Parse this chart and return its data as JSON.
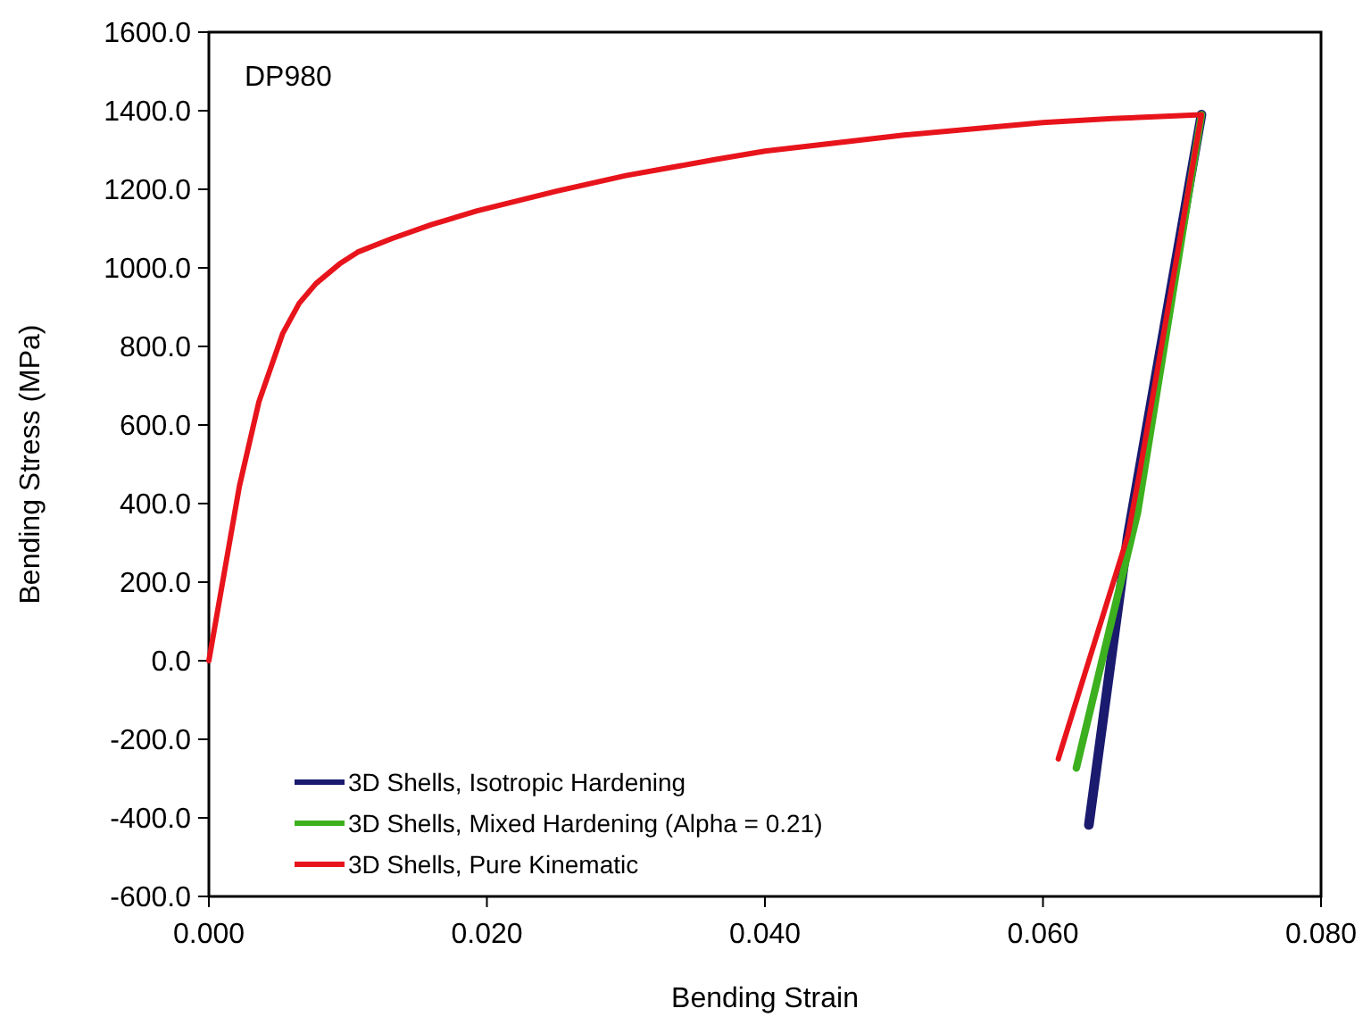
{
  "chart_data": {
    "type": "line",
    "title": "DP980",
    "xlabel": "Bending Strain",
    "ylabel": "Bending Stress (MPa)",
    "xlim": [
      0,
      0.08
    ],
    "ylim": [
      -600,
      1600
    ],
    "xticks": [
      {
        "value": 0,
        "label": "0.000"
      },
      {
        "value": 0.02,
        "label": "0.020"
      },
      {
        "value": 0.04,
        "label": "0.040"
      },
      {
        "value": 0.06,
        "label": "0.060"
      },
      {
        "value": 0.08,
        "label": "0.080"
      }
    ],
    "yticks": [
      {
        "value": -600,
        "label": "-600.0"
      },
      {
        "value": -400,
        "label": "-400.0"
      },
      {
        "value": -200,
        "label": "-200.0"
      },
      {
        "value": 0,
        "label": "0.0"
      },
      {
        "value": 200,
        "label": "200.0"
      },
      {
        "value": 400,
        "label": "400.0"
      },
      {
        "value": 600,
        "label": "600.0"
      },
      {
        "value": 800,
        "label": "800.0"
      },
      {
        "value": 1000,
        "label": "1000.0"
      },
      {
        "value": 1200,
        "label": "1200.0"
      },
      {
        "value": 1400,
        "label": "1400.0"
      },
      {
        "value": 1600,
        "label": "1600.0"
      }
    ],
    "grid": false,
    "legend": "bottom left",
    "marker": "none",
    "line_style": "solid",
    "series": [
      {
        "name": "3D Shells, Isotropic Hardening",
        "color": "#1a1a6e",
        "x": [
          0.0714,
          0.0661,
          0.0633
        ],
        "values": [
          1390,
          318,
          -418
        ]
      },
      {
        "name": "3D Shells, Mixed Hardening (Alpha = 0.21)",
        "color": "#3cb01e",
        "x": [
          0.0714,
          0.0668,
          0.0624
        ],
        "values": [
          1390,
          377,
          -273
        ]
      },
      {
        "name": "3D Shells, Pure Kinematic",
        "color": "#e8141c",
        "x": [
          0,
          0.0022,
          0.0036,
          0.0053,
          0.0065,
          0.0077,
          0.0094,
          0.0107,
          0.0132,
          0.016,
          0.0193,
          0.025,
          0.03,
          0.0363,
          0.04,
          0.05,
          0.06,
          0.065,
          0.0714,
          0.0669,
          0.0661,
          0.0611
        ],
        "values": [
          0,
          445,
          659,
          832,
          910,
          960,
          1010,
          1040,
          1075,
          1110,
          1145,
          1195,
          1235,
          1275,
          1297,
          1338,
          1370,
          1380,
          1390,
          468,
          318,
          -250
        ]
      }
    ]
  }
}
